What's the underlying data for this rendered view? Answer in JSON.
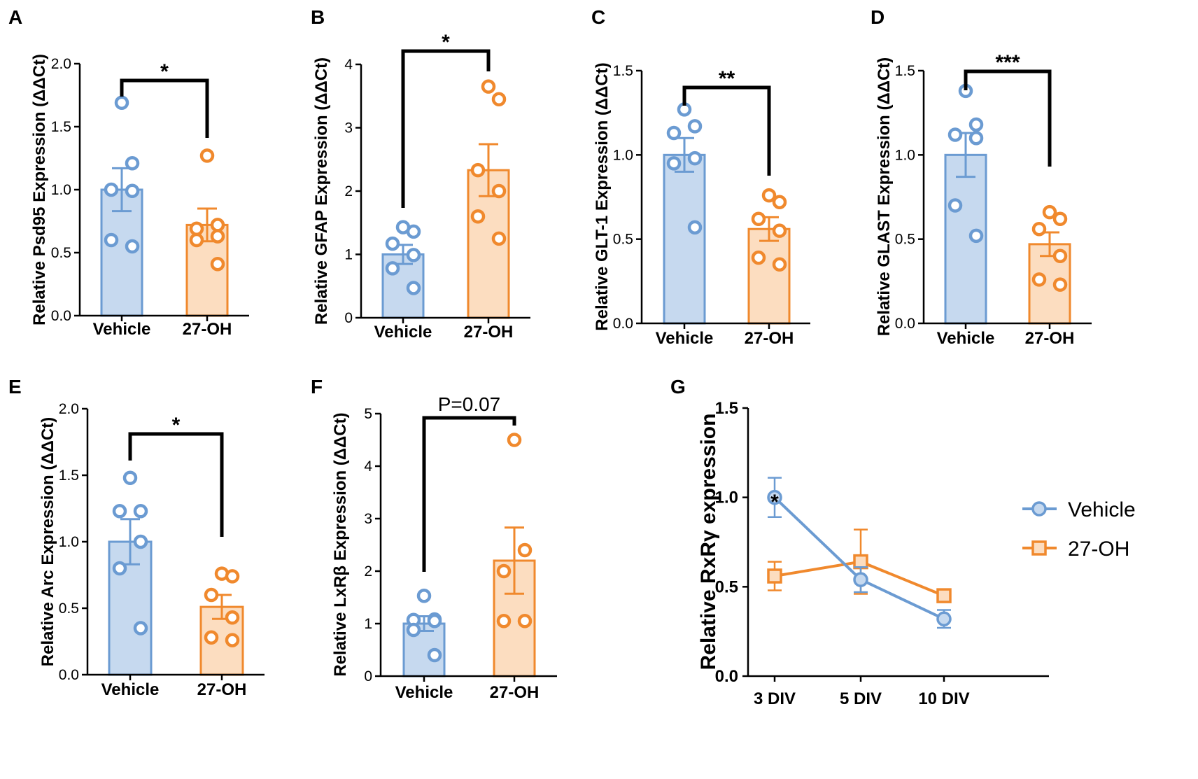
{
  "colors": {
    "vehicle": "#6B9BD2",
    "vehicle_fill": "#C6D9EF",
    "oh27": "#F0892D",
    "oh27_fill": "#FCDDC0",
    "axis": "#000000"
  },
  "chart_data": [
    {
      "panel": "A",
      "type": "bar",
      "ylabel": "Relative Psd95 Expression (ΔΔCt)",
      "categories": [
        "Vehicle",
        "27-OH"
      ],
      "ylim": [
        0,
        2.0
      ],
      "yticks": [
        0,
        0.5,
        1.0,
        1.5,
        2.0
      ],
      "tick_labels": [
        "0.0",
        "0.5",
        "1.0",
        "1.5",
        "2.0"
      ],
      "means": [
        1.0,
        0.72
      ],
      "sem": [
        0.17,
        0.13
      ],
      "points": [
        [
          1.69,
          1.21,
          1.0,
          0.99,
          0.6,
          0.55
        ],
        [
          1.27,
          0.72,
          0.69,
          0.63,
          0.6,
          0.41
        ]
      ],
      "significance": "*"
    },
    {
      "panel": "B",
      "type": "bar",
      "ylabel": "Relative GFAP Expression (ΔΔCt)",
      "categories": [
        "Vehicle",
        "27-OH"
      ],
      "ylim": [
        0,
        4
      ],
      "yticks": [
        0,
        1,
        2,
        3,
        4
      ],
      "tick_labels": [
        "0",
        "1",
        "2",
        "3",
        "4"
      ],
      "means": [
        1.0,
        2.33
      ],
      "sem": [
        0.15,
        0.41
      ],
      "points": [
        [
          1.43,
          1.36,
          1.17,
          0.99,
          0.78,
          0.47
        ],
        [
          3.65,
          3.45,
          2.33,
          2.0,
          1.6,
          1.25
        ]
      ],
      "significance": "*"
    },
    {
      "panel": "C",
      "type": "bar",
      "ylabel": "Relative GLT-1 Expression (ΔΔCt)",
      "categories": [
        "Vehicle",
        "27-OH"
      ],
      "ylim": [
        0,
        1.5
      ],
      "yticks": [
        0,
        0.5,
        1.0,
        1.5
      ],
      "tick_labels": [
        "0.0",
        "0.5",
        "1.0",
        "1.5"
      ],
      "means": [
        1.0,
        0.56
      ],
      "sem": [
        0.1,
        0.07
      ],
      "points": [
        [
          1.27,
          1.17,
          1.13,
          0.98,
          0.95,
          0.57
        ],
        [
          0.76,
          0.72,
          0.62,
          0.55,
          0.39,
          0.35
        ]
      ],
      "significance": "**"
    },
    {
      "panel": "D",
      "type": "bar",
      "ylabel": "Relative GLAST Expression (ΔΔCt)",
      "categories": [
        "Vehicle",
        "27-OH"
      ],
      "ylim": [
        0,
        1.5
      ],
      "yticks": [
        0,
        0.5,
        1.0,
        1.5
      ],
      "tick_labels": [
        "0.0",
        "0.5",
        "1.0",
        "1.5"
      ],
      "means": [
        1.0,
        0.47
      ],
      "sem": [
        0.13,
        0.07
      ],
      "points": [
        [
          1.38,
          1.18,
          1.12,
          1.1,
          0.7,
          0.52
        ],
        [
          0.66,
          0.62,
          0.56,
          0.4,
          0.26,
          0.23
        ]
      ],
      "significance": "***"
    },
    {
      "panel": "E",
      "type": "bar",
      "ylabel": "Relative Arc Expression (ΔΔCt)",
      "categories": [
        "Vehicle",
        "27-OH"
      ],
      "ylim": [
        0,
        2.0
      ],
      "yticks": [
        0,
        0.5,
        1.0,
        1.5,
        2.0
      ],
      "tick_labels": [
        "0.0",
        "0.5",
        "1.0",
        "1.5",
        "2.0"
      ],
      "means": [
        1.0,
        0.51
      ],
      "sem": [
        0.17,
        0.09
      ],
      "points": [
        [
          1.48,
          1.23,
          1.23,
          1.0,
          0.8,
          0.35
        ],
        [
          0.76,
          0.74,
          0.6,
          0.43,
          0.28,
          0.26
        ]
      ],
      "significance": "*"
    },
    {
      "panel": "F",
      "type": "bar",
      "ylabel": "Relative LxRβ Expression (ΔΔCt)",
      "categories": [
        "Vehicle",
        "27-OH"
      ],
      "ylim": [
        0,
        5
      ],
      "yticks": [
        0,
        1,
        2,
        3,
        4,
        5
      ],
      "tick_labels": [
        "0",
        "1",
        "2",
        "3",
        "4",
        "5"
      ],
      "means": [
        1.0,
        2.2
      ],
      "sem": [
        0.14,
        0.63
      ],
      "points": [
        [
          1.53,
          1.08,
          1.07,
          1.05,
          0.88,
          0.4
        ],
        [
          4.5,
          2.4,
          2.0,
          1.05,
          1.05
        ]
      ],
      "significance": "P=0.07"
    },
    {
      "panel": "G",
      "type": "line",
      "ylabel": "Relative RxRγ expression",
      "categories": [
        "3 DIV",
        "5 DIV",
        "10 DIV"
      ],
      "ylim": [
        0,
        1.5
      ],
      "yticks": [
        0,
        0.5,
        1.0,
        1.5
      ],
      "tick_labels": [
        "0.0",
        "0.5",
        "1.0",
        "1.5"
      ],
      "series": [
        {
          "name": "Vehicle",
          "values": [
            1.0,
            0.54,
            0.32
          ],
          "sem": [
            0.11,
            0.07,
            0.05
          ],
          "marker": "circle"
        },
        {
          "name": "27-OH",
          "values": [
            0.56,
            0.64,
            0.45
          ],
          "sem": [
            0.08,
            0.18,
            0.02
          ],
          "marker": "square"
        }
      ],
      "annotations": [
        {
          "category": "3 DIV",
          "text": "*"
        }
      ],
      "legend": "right"
    }
  ]
}
